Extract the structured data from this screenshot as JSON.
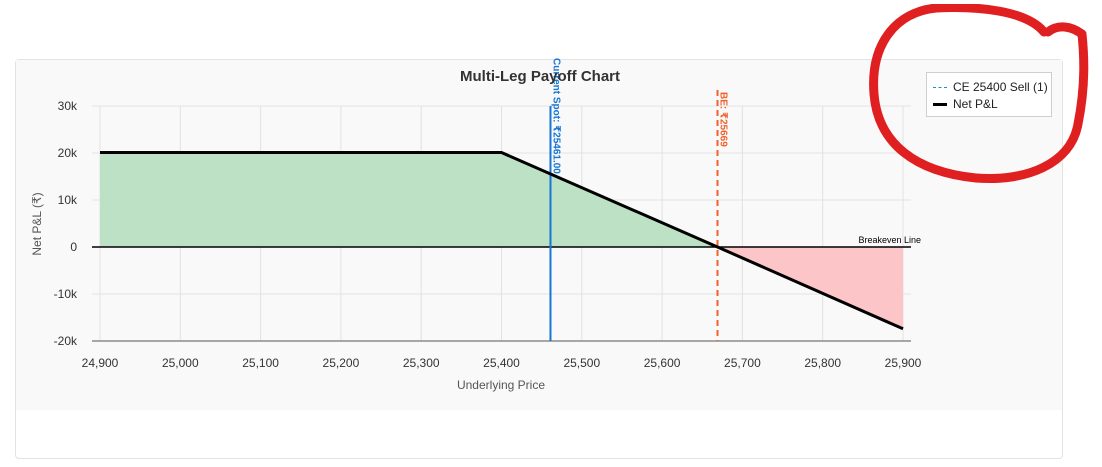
{
  "chart_data": {
    "type": "line",
    "title": "Multi-Leg Payoff Chart",
    "xlabel": "Underlying Price",
    "ylabel": "Net P&L (₹)",
    "xlim": [
      24900,
      25900
    ],
    "ylim": [
      -20000,
      30000
    ],
    "x_ticks": [
      24900,
      25000,
      25100,
      25200,
      25300,
      25400,
      25500,
      25600,
      25700,
      25800,
      25900
    ],
    "x_tick_labels": [
      "24,900",
      "25,000",
      "25,100",
      "25,200",
      "25,300",
      "25,400",
      "25,500",
      "25,600",
      "25,700",
      "25,800",
      "25,900"
    ],
    "y_ticks": [
      -20000,
      -10000,
      0,
      10000,
      20000,
      30000
    ],
    "y_tick_labels": [
      "-20k",
      "-10k",
      "0",
      "10k",
      "20k",
      "30k"
    ],
    "grid": true,
    "legend_position": "top-right",
    "series": [
      {
        "name": "CE 25400 Sell (1)",
        "style": "dashed",
        "color": "#1a8fd1",
        "x": [],
        "y": []
      },
      {
        "name": "Net P&L",
        "style": "solid",
        "color": "#000000",
        "x": [
          24900,
          25400,
          25669,
          25900
        ],
        "y": [
          20100,
          20100,
          0,
          -17400
        ]
      }
    ],
    "profit_fill_color": "#bde1c5",
    "loss_fill_color": "#fcc6c9",
    "annotations": {
      "breakeven_line_label": "Breakeven Line",
      "spot": {
        "x": 25461,
        "label": "Current Spot: ₹25461.00",
        "color": "#1576d3"
      },
      "be": {
        "x": 25669,
        "label": "BE: ₹25669",
        "color": "#f0622e"
      }
    }
  },
  "overlay": {
    "annotation_color": "#e02020"
  }
}
